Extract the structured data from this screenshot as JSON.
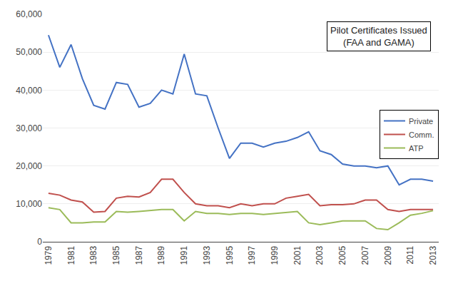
{
  "chart_data": {
    "type": "line",
    "title": "Pilot Certificates Issued",
    "subtitle": "(FAA and GAMA)",
    "x": [
      1979,
      1980,
      1981,
      1982,
      1983,
      1984,
      1985,
      1986,
      1987,
      1988,
      1989,
      1990,
      1991,
      1992,
      1993,
      1994,
      1995,
      1996,
      1997,
      1998,
      1999,
      2000,
      2001,
      2002,
      2003,
      2004,
      2005,
      2006,
      2007,
      2008,
      2009,
      2010,
      2011,
      2012,
      2013
    ],
    "series": [
      {
        "name": "Private",
        "color": "#4472C4",
        "values": [
          54500,
          46000,
          52000,
          43000,
          36000,
          35000,
          42000,
          41500,
          35500,
          36500,
          40000,
          39000,
          49500,
          39000,
          38500,
          30000,
          22000,
          26000,
          26000,
          25000,
          26000,
          26500,
          27500,
          29000,
          24000,
          23000,
          20500,
          20000,
          20000,
          19500,
          20000,
          15000,
          16500,
          16500,
          16000
        ]
      },
      {
        "name": "Comm.",
        "color": "#C0504D",
        "values": [
          12800,
          12300,
          11000,
          10500,
          7800,
          8000,
          11500,
          12000,
          11800,
          13000,
          16500,
          16500,
          13000,
          10000,
          9500,
          9500,
          9000,
          10000,
          9500,
          10000,
          10000,
          11500,
          12000,
          12500,
          9500,
          9800,
          9800,
          10000,
          11000,
          11000,
          8500,
          8000,
          8500,
          8500,
          8500
        ]
      },
      {
        "name": "ATP",
        "color": "#9BBB59",
        "values": [
          9000,
          8500,
          5000,
          5000,
          5200,
          5200,
          8000,
          7800,
          8000,
          8200,
          8500,
          8500,
          5500,
          8000,
          7500,
          7500,
          7200,
          7500,
          7500,
          7200,
          7500,
          7800,
          8000,
          5000,
          4500,
          5000,
          5500,
          5500,
          5500,
          3500,
          3200,
          5000,
          7000,
          7500,
          8200
        ]
      }
    ],
    "xlim": [
      1978.5,
      2013.5
    ],
    "xticks": [
      1979,
      1981,
      1983,
      1985,
      1987,
      1989,
      1991,
      1993,
      1995,
      1997,
      1999,
      2001,
      2003,
      2005,
      2007,
      2009,
      2011,
      2013
    ],
    "ylim": [
      0,
      60000
    ],
    "yticks": [
      0,
      {
        "value": 10000,
        "label": "10,000"
      },
      {
        "value": 20000,
        "label": "20,000"
      },
      {
        "value": 30000,
        "label": "30,000"
      },
      {
        "value": 40000,
        "label": "40,000"
      },
      {
        "value": 50000,
        "label": "50,000"
      },
      {
        "value": 60000,
        "label": "60,000"
      }
    ],
    "grid": true,
    "legend": "right"
  }
}
